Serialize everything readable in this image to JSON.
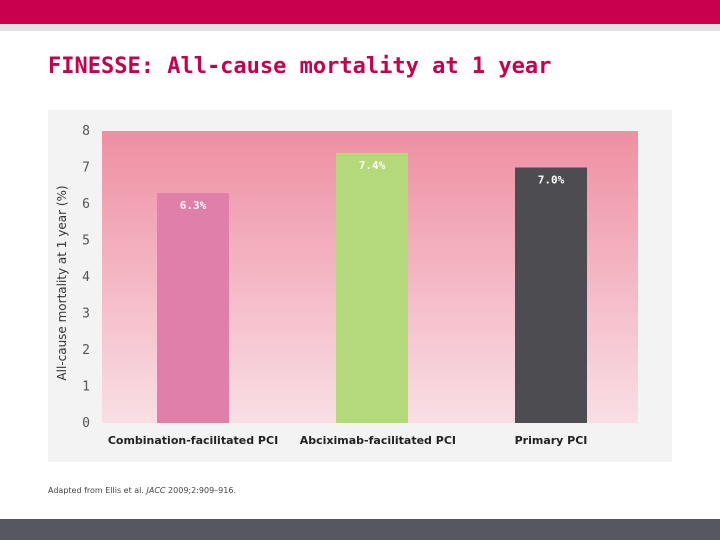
{
  "title": "FINESSE: All-cause mortality at 1 year",
  "source": {
    "prefix": "Adapted from Ellis et al. ",
    "journal": "JACC",
    "suffix": " 2009;2:909–916."
  },
  "colors": {
    "brand": "#c8004b",
    "footer": "#56565e",
    "plot_top": "#ef8fa3",
    "plot_bottom": "#f9dfe5"
  },
  "chart_data": {
    "type": "bar",
    "title": "",
    "xlabel": "",
    "ylabel": "All-cause mortality at 1 year (%)",
    "ylim": [
      0,
      8
    ],
    "yticks": [
      0,
      1,
      2,
      3,
      4,
      5,
      6,
      7,
      8
    ],
    "grid": false,
    "categories": [
      "Combination-facilitated PCI",
      "Abciximab-facilitated PCI",
      "Primary PCI"
    ],
    "values": [
      6.3,
      7.4,
      7.0
    ],
    "data_labels": [
      "6.3%",
      "7.4%",
      "7.0%"
    ],
    "bar_colors": [
      "#e07fa8",
      "#b3d97a",
      "#4c4c51"
    ],
    "label_colors": [
      "#ffffff",
      "#ffffff",
      "#ffffff"
    ]
  }
}
